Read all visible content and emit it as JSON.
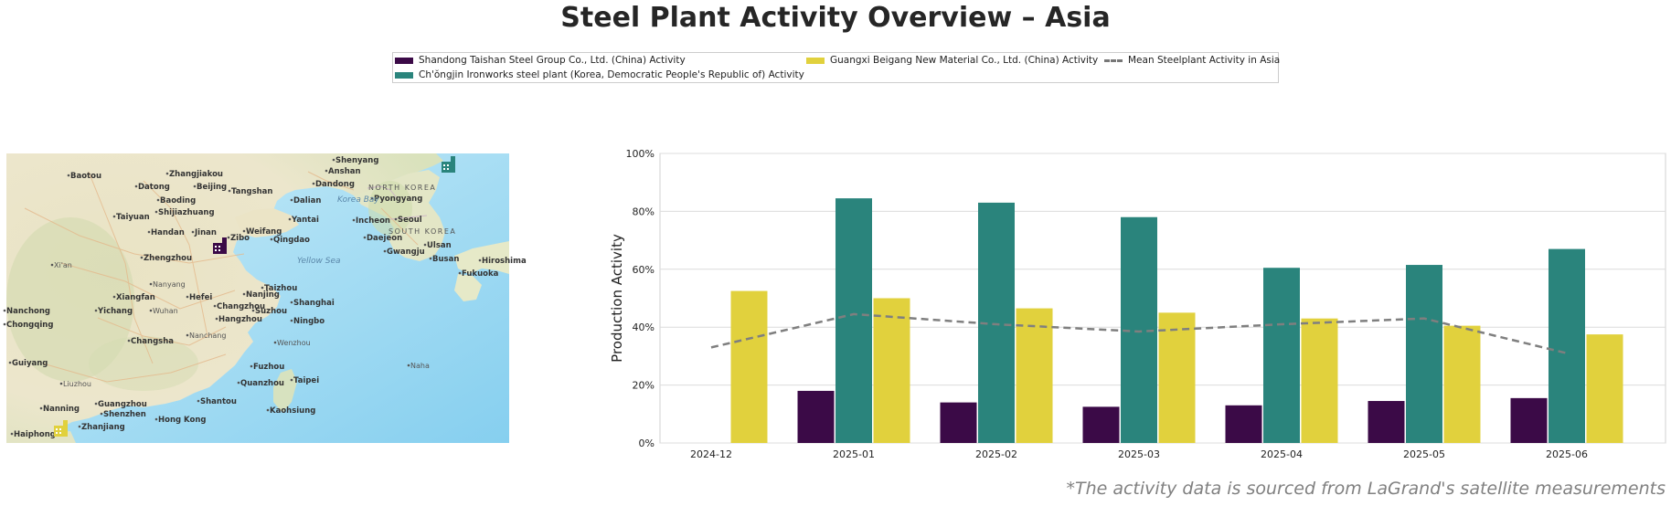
{
  "page_title": "Steel Plant Activity Overview – Asia",
  "footnote": "*The activity data is sourced from LaGrand's satellite measurements",
  "legend": [
    {
      "label": "Shandong Taishan Steel Group Co., Ltd. (China) Activity",
      "color": "#3b0a47",
      "style": "bar"
    },
    {
      "label": "Ch'ŏngjin Ironworks steel plant (Korea, Democratic People's Republic of) Activity",
      "color": "#2a847c",
      "style": "bar"
    },
    {
      "label": "Guangxi Beigang New Material Co., Ltd. (China) Activity",
      "color": "#e1d13d",
      "style": "bar"
    },
    {
      "label": "Mean Steelplant Activity in Asia",
      "color": "#7f7f7f",
      "style": "dashed-line"
    }
  ],
  "map": {
    "place_labels": [
      "Shenyang",
      "Anshan",
      "Dandong",
      "Baotou",
      "Zhangjiakou",
      "Datong",
      "Beijing",
      "Tangshan",
      "Baoding",
      "Dalian",
      "Pyongyang",
      "Shijiazhuang",
      "Taiyuan",
      "Yantai",
      "Incheon",
      "Seoul",
      "Handan",
      "Jinan",
      "Zibo",
      "Weifang",
      "Qingdao",
      "Daejeon",
      "Gwangju",
      "Ulsan",
      "Busan",
      "Hiroshima",
      "Fukuoka",
      "Xi'an",
      "Zhengzhou",
      "Nanyang",
      "Xiangfan",
      "Hefei",
      "Nanjing",
      "Taizhou",
      "Shanghai",
      "Yichang",
      "Wuhan",
      "Changzhou",
      "Suzhou",
      "Ningbo",
      "Hangzhou",
      "Nanchong",
      "Chongqing",
      "Changsha",
      "Nanchang",
      "Wenzhou",
      "Guiyang",
      "Fuzhou",
      "Naha",
      "Liuzhou",
      "Quanzhou",
      "Taipei",
      "Nanning",
      "Guangzhou",
      "Shantou",
      "Shenzhen",
      "Kaohsiung",
      "Hong Kong",
      "Zhanjiang",
      "Haiphong"
    ],
    "sea_labels": [
      "Korea Bay",
      "Yellow Sea"
    ],
    "region_labels": [
      "NORTH KOREA",
      "SOUTH KOREA"
    ],
    "colors": {
      "land": "#efe9d0",
      "sea": "#a8dcf2",
      "road": "#e7b88d"
    }
  },
  "chart_data": {
    "type": "bar",
    "categories": [
      "2024-12",
      "2025-01",
      "2025-02",
      "2025-03",
      "2025-04",
      "2025-05",
      "2025-06"
    ],
    "series": [
      {
        "name": "Shandong Taishan Steel Group Co., Ltd. (China) Activity",
        "color": "#3b0a47",
        "values": [
          null,
          18,
          14,
          12.5,
          13,
          14.5,
          15.5
        ]
      },
      {
        "name": "Ch'ŏngjin Ironworks steel plant (Korea, Democratic People's Republic of) Activity",
        "color": "#2a847c",
        "values": [
          null,
          84.5,
          83,
          78,
          60.5,
          61.5,
          67
        ]
      },
      {
        "name": "Guangxi Beigang New Material Co., Ltd. (China) Activity",
        "color": "#e1d13d",
        "values": [
          52.5,
          50,
          46.5,
          45,
          43,
          40.5,
          37.5
        ]
      }
    ],
    "line_series": {
      "name": "Mean Steelplant Activity in Asia",
      "color": "#7f7f7f",
      "style": "dashed",
      "values": [
        33,
        44.5,
        41,
        38.5,
        41,
        43,
        31
      ]
    },
    "ylabel": "Production Activity",
    "xlabel": "",
    "ylim": [
      0,
      100
    ],
    "yticks": [
      0,
      20,
      40,
      60,
      80,
      100
    ],
    "ytick_labels": [
      "0%",
      "20%",
      "40%",
      "60%",
      "80%",
      "100%"
    ],
    "grid": true
  }
}
